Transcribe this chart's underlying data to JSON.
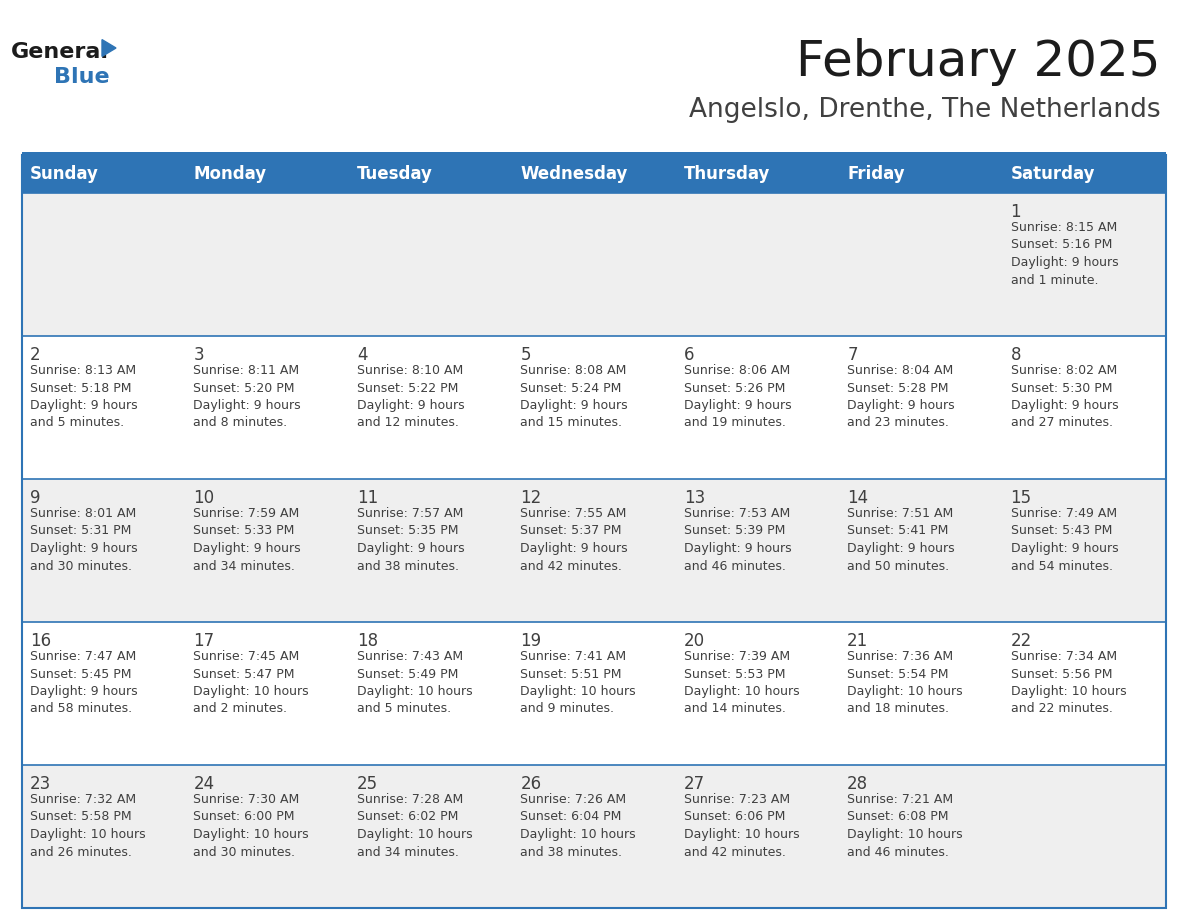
{
  "title": "February 2025",
  "subtitle": "Angelslo, Drenthe, The Netherlands",
  "header_bg": "#2E74B5",
  "header_text_color": "#FFFFFF",
  "cell_bg_odd": "#EFEFEF",
  "cell_bg_even": "#FFFFFF",
  "border_color": "#2E74B5",
  "text_color": "#404040",
  "days_of_week": [
    "Sunday",
    "Monday",
    "Tuesday",
    "Wednesday",
    "Thursday",
    "Friday",
    "Saturday"
  ],
  "weeks": [
    [
      null,
      null,
      null,
      null,
      null,
      null,
      1
    ],
    [
      2,
      3,
      4,
      5,
      6,
      7,
      8
    ],
    [
      9,
      10,
      11,
      12,
      13,
      14,
      15
    ],
    [
      16,
      17,
      18,
      19,
      20,
      21,
      22
    ],
    [
      23,
      24,
      25,
      26,
      27,
      28,
      null
    ]
  ],
  "day_data": {
    "1": {
      "sunrise": "8:15 AM",
      "sunset": "5:16 PM",
      "daylight": "9 hours\nand 1 minute."
    },
    "2": {
      "sunrise": "8:13 AM",
      "sunset": "5:18 PM",
      "daylight": "9 hours\nand 5 minutes."
    },
    "3": {
      "sunrise": "8:11 AM",
      "sunset": "5:20 PM",
      "daylight": "9 hours\nand 8 minutes."
    },
    "4": {
      "sunrise": "8:10 AM",
      "sunset": "5:22 PM",
      "daylight": "9 hours\nand 12 minutes."
    },
    "5": {
      "sunrise": "8:08 AM",
      "sunset": "5:24 PM",
      "daylight": "9 hours\nand 15 minutes."
    },
    "6": {
      "sunrise": "8:06 AM",
      "sunset": "5:26 PM",
      "daylight": "9 hours\nand 19 minutes."
    },
    "7": {
      "sunrise": "8:04 AM",
      "sunset": "5:28 PM",
      "daylight": "9 hours\nand 23 minutes."
    },
    "8": {
      "sunrise": "8:02 AM",
      "sunset": "5:30 PM",
      "daylight": "9 hours\nand 27 minutes."
    },
    "9": {
      "sunrise": "8:01 AM",
      "sunset": "5:31 PM",
      "daylight": "9 hours\nand 30 minutes."
    },
    "10": {
      "sunrise": "7:59 AM",
      "sunset": "5:33 PM",
      "daylight": "9 hours\nand 34 minutes."
    },
    "11": {
      "sunrise": "7:57 AM",
      "sunset": "5:35 PM",
      "daylight": "9 hours\nand 38 minutes."
    },
    "12": {
      "sunrise": "7:55 AM",
      "sunset": "5:37 PM",
      "daylight": "9 hours\nand 42 minutes."
    },
    "13": {
      "sunrise": "7:53 AM",
      "sunset": "5:39 PM",
      "daylight": "9 hours\nand 46 minutes."
    },
    "14": {
      "sunrise": "7:51 AM",
      "sunset": "5:41 PM",
      "daylight": "9 hours\nand 50 minutes."
    },
    "15": {
      "sunrise": "7:49 AM",
      "sunset": "5:43 PM",
      "daylight": "9 hours\nand 54 minutes."
    },
    "16": {
      "sunrise": "7:47 AM",
      "sunset": "5:45 PM",
      "daylight": "9 hours\nand 58 minutes."
    },
    "17": {
      "sunrise": "7:45 AM",
      "sunset": "5:47 PM",
      "daylight": "10 hours\nand 2 minutes."
    },
    "18": {
      "sunrise": "7:43 AM",
      "sunset": "5:49 PM",
      "daylight": "10 hours\nand 5 minutes."
    },
    "19": {
      "sunrise": "7:41 AM",
      "sunset": "5:51 PM",
      "daylight": "10 hours\nand 9 minutes."
    },
    "20": {
      "sunrise": "7:39 AM",
      "sunset": "5:53 PM",
      "daylight": "10 hours\nand 14 minutes."
    },
    "21": {
      "sunrise": "7:36 AM",
      "sunset": "5:54 PM",
      "daylight": "10 hours\nand 18 minutes."
    },
    "22": {
      "sunrise": "7:34 AM",
      "sunset": "5:56 PM",
      "daylight": "10 hours\nand 22 minutes."
    },
    "23": {
      "sunrise": "7:32 AM",
      "sunset": "5:58 PM",
      "daylight": "10 hours\nand 26 minutes."
    },
    "24": {
      "sunrise": "7:30 AM",
      "sunset": "6:00 PM",
      "daylight": "10 hours\nand 30 minutes."
    },
    "25": {
      "sunrise": "7:28 AM",
      "sunset": "6:02 PM",
      "daylight": "10 hours\nand 34 minutes."
    },
    "26": {
      "sunrise": "7:26 AM",
      "sunset": "6:04 PM",
      "daylight": "10 hours\nand 38 minutes."
    },
    "27": {
      "sunrise": "7:23 AM",
      "sunset": "6:06 PM",
      "daylight": "10 hours\nand 42 minutes."
    },
    "28": {
      "sunrise": "7:21 AM",
      "sunset": "6:08 PM",
      "daylight": "10 hours\nand 46 minutes."
    }
  },
  "logo_text_general": "General",
  "logo_text_blue": "Blue",
  "header_fontsize": 12,
  "day_num_fontsize": 12,
  "cell_text_fontsize": 9,
  "title_fontsize": 36,
  "subtitle_fontsize": 19
}
